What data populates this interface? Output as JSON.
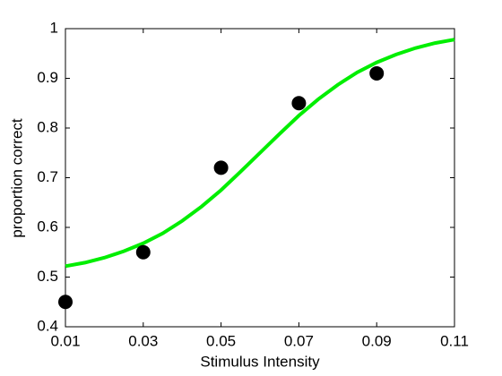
{
  "chart_data": {
    "type": "scatter",
    "x_label": "Stimulus Intensity",
    "y_label": "proportion correct",
    "points": {
      "color": "#000000",
      "x": [
        0.01,
        0.03,
        0.05,
        0.07,
        0.09
      ],
      "y": [
        0.45,
        0.55,
        0.72,
        0.85,
        0.91
      ]
    },
    "fit": {
      "type": "line",
      "color": "#00ee00",
      "x": [
        0.01,
        0.015,
        0.02,
        0.025,
        0.03,
        0.035,
        0.04,
        0.045,
        0.05,
        0.055,
        0.06,
        0.065,
        0.07,
        0.075,
        0.08,
        0.085,
        0.09,
        0.095,
        0.1,
        0.105,
        0.11
      ],
      "y": [
        0.522,
        0.529,
        0.539,
        0.552,
        0.568,
        0.588,
        0.613,
        0.642,
        0.675,
        0.712,
        0.75,
        0.788,
        0.825,
        0.858,
        0.887,
        0.912,
        0.932,
        0.948,
        0.961,
        0.971,
        0.978
      ]
    },
    "xlim": [
      0.01,
      0.11
    ],
    "xticks": [
      0.01,
      0.03,
      0.05,
      0.07,
      0.09,
      0.11
    ],
    "ylim": [
      0.4,
      1
    ],
    "yticks": [
      0.4,
      0.5,
      0.6,
      0.7,
      0.8,
      0.9,
      1
    ],
    "grid": false
  }
}
